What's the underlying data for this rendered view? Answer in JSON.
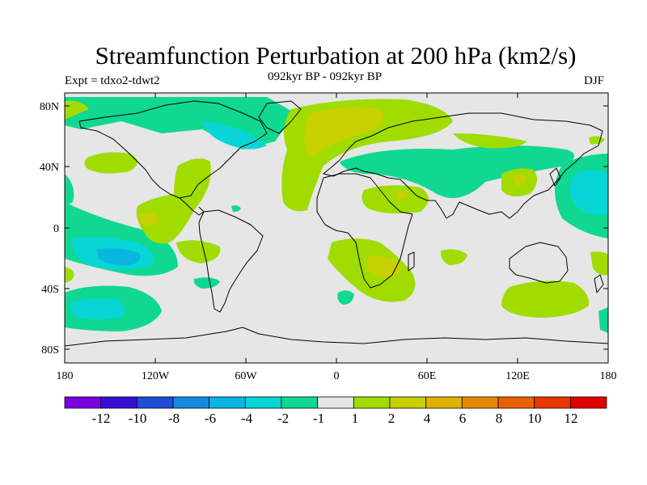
{
  "title": "Streamfunction Perturbation at 200 hPa (km2/s)",
  "subtitle": "092kyr BP - 092kyr BP",
  "experiment": "Expt = tdxo2-tdwt2",
  "season": "DJF",
  "lat_ticks": [
    "80N",
    "40N",
    "0",
    "40S",
    "80S"
  ],
  "lon_ticks": [
    "180",
    "120W",
    "60W",
    "0",
    "60E",
    "120E",
    "180"
  ],
  "colorbar": {
    "colors": [
      "#7a00e0",
      "#3a10d8",
      "#1e4ed8",
      "#128ae0",
      "#08b6e0",
      "#08d6d6",
      "#10d890",
      "#e6e6e6",
      "#a0dc00",
      "#c8d000",
      "#e0b000",
      "#e88800",
      "#e86000",
      "#e83800",
      "#e00000"
    ],
    "labels": [
      "-12",
      "-10",
      "-8",
      "-6",
      "-4",
      "-2",
      "-1",
      "1",
      "2",
      "4",
      "6",
      "8",
      "10",
      "12"
    ]
  },
  "fill_colors": {
    "neutral": "#e6e6e6",
    "pos1": "#a0dc00",
    "pos2": "#c8d000",
    "neg1": "#10d890",
    "neg2": "#08d6d6",
    "neg3": "#08b6e0"
  }
}
